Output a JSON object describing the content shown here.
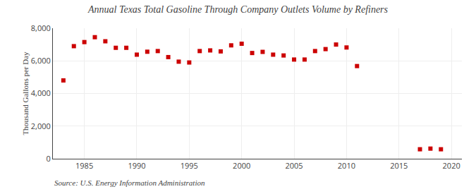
{
  "chart_data": {
    "type": "scatter",
    "title": "Annual Texas Total Gasoline Through Company Outlets Volume by Refiners",
    "ylabel": "Thousand Gallons per Day",
    "annotations": [
      "Source: U.S. Energy Information Administration"
    ],
    "x": [
      1983,
      1984,
      1985,
      1986,
      1987,
      1988,
      1989,
      1990,
      1991,
      1992,
      1993,
      1994,
      1995,
      1996,
      1997,
      1998,
      1999,
      2000,
      2001,
      2002,
      2003,
      2004,
      2005,
      2006,
      2007,
      2008,
      2009,
      2010,
      2011,
      2017,
      2018,
      2019
    ],
    "values": [
      4800,
      6900,
      7150,
      7450,
      7200,
      6800,
      6800,
      6380,
      6560,
      6600,
      6230,
      5950,
      5900,
      6600,
      6640,
      6580,
      6950,
      7050,
      6480,
      6550,
      6380,
      6330,
      6080,
      6080,
      6600,
      6720,
      7000,
      6820,
      5680,
      580,
      620,
      580
    ],
    "color": "#cc0000",
    "marker": "square",
    "xlim": [
      1982,
      2021
    ],
    "ylim": [
      0,
      8000
    ],
    "xticks": [
      1985,
      1990,
      1995,
      2000,
      2005,
      2010,
      2015,
      2020
    ],
    "yticks": [
      0,
      {
        "value": 2000,
        "label": "2,000"
      },
      {
        "value": 4000,
        "label": "4,000"
      },
      {
        "value": 6000,
        "label": "6,000"
      },
      {
        "value": 8000,
        "label": "8,000"
      }
    ],
    "grid": true
  }
}
